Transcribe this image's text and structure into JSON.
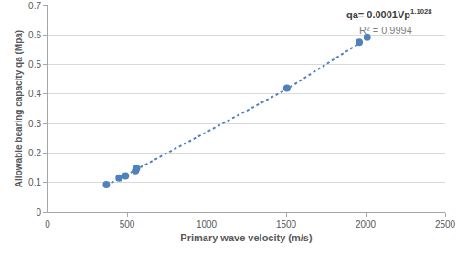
{
  "chart_data": {
    "type": "scatter",
    "x_label": "Primary wave velocity (m/s)",
    "y_label": "Allowable bearing capacity qa (Mpa)",
    "series": [
      {
        "type": "scatter",
        "marker": "circle",
        "color": "#4f81bd",
        "x": [
          370,
          450,
          490,
          553,
          560,
          1505,
          1960,
          2010
        ],
        "values": [
          0.093,
          0.115,
          0.122,
          0.14,
          0.148,
          0.42,
          0.575,
          0.592
        ]
      },
      {
        "type": "line",
        "line_style": "dotted",
        "color": "#4f81bd",
        "x": [
          370,
          1000,
          1500,
          1960
        ],
        "values": [
          0.09,
          0.27,
          0.415,
          0.572
        ]
      }
    ],
    "annotations": [
      {
        "text": "qa= 0.0001Vp",
        "superscript": "1.1028",
        "bold": true
      },
      {
        "text": "R² = 0.9994",
        "bold": false
      }
    ],
    "xlim": [
      0,
      2500
    ],
    "xticks": [
      0,
      500,
      1000,
      1500,
      2000,
      2500
    ],
    "ylim": [
      0,
      0.7
    ],
    "yticks": [
      0,
      0.1,
      0.2,
      0.3,
      0.4,
      0.5,
      0.6,
      0.7
    ],
    "grid": "y"
  }
}
